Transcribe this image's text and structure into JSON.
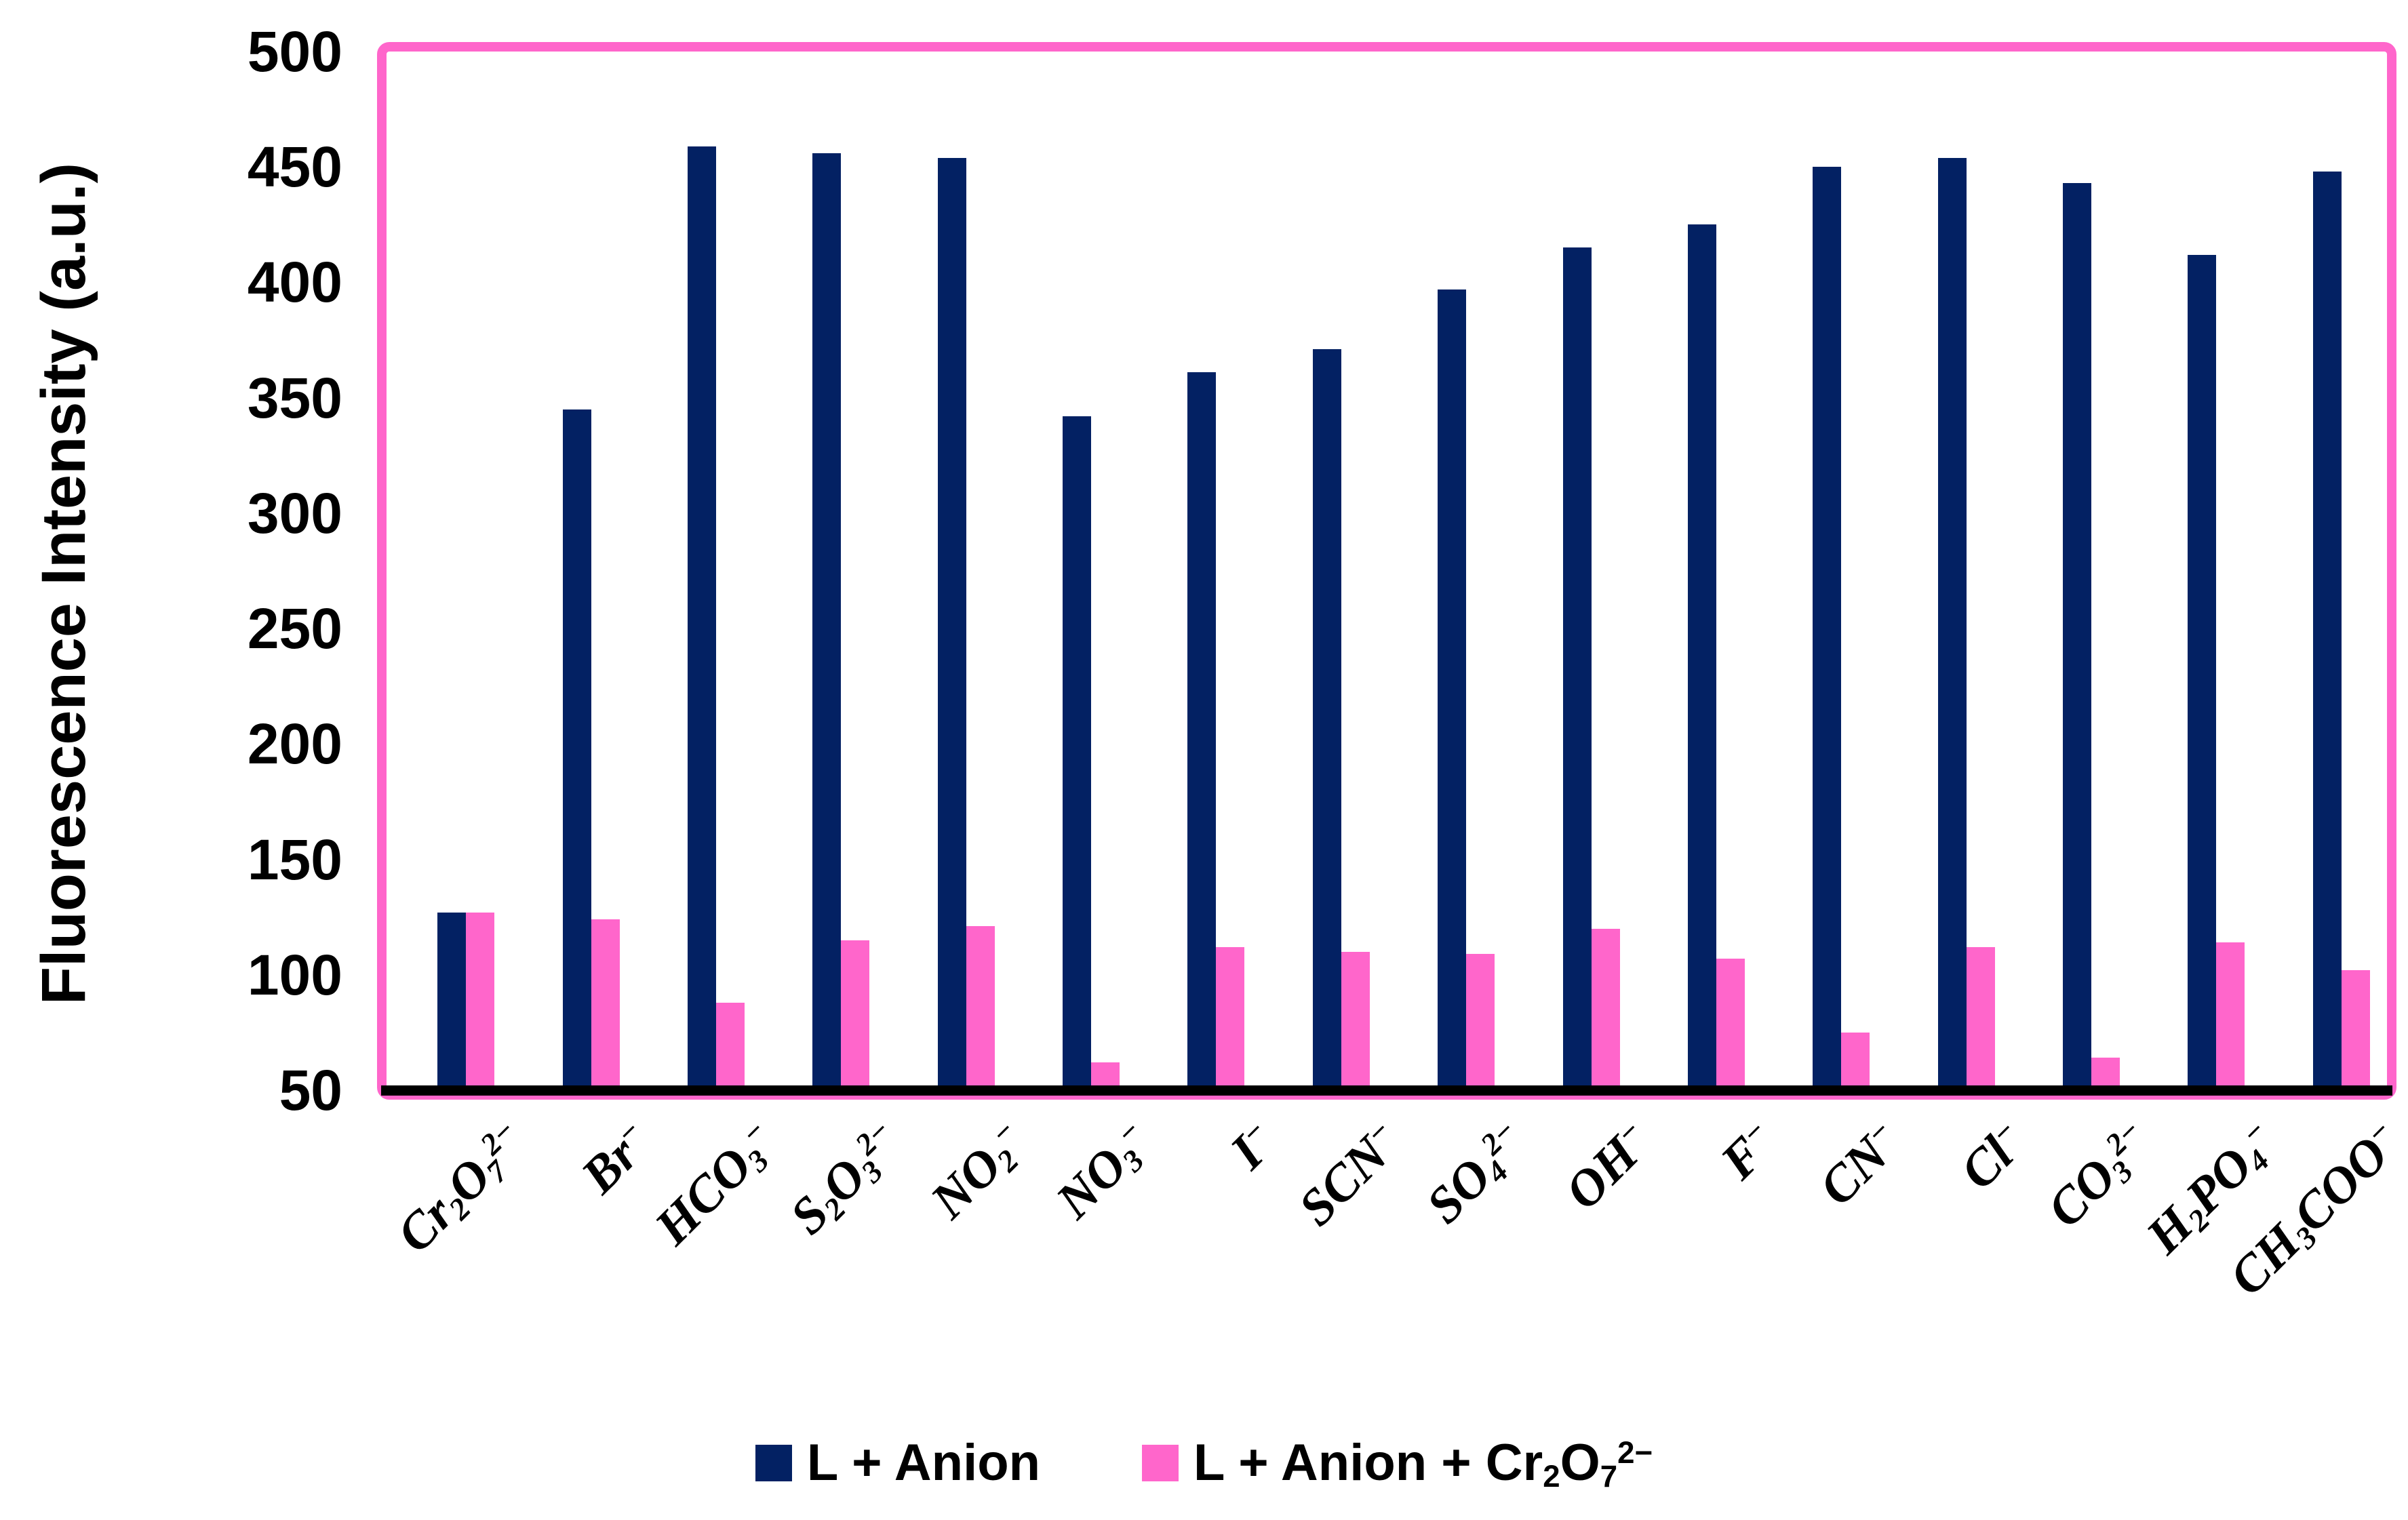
{
  "chart_data": {
    "type": "bar",
    "title": "",
    "xlabel": "",
    "ylabel": "Fluorescence Intensity (a.u.)",
    "ylim": [
      50,
      500
    ],
    "yticks": [
      500,
      450,
      400,
      350,
      300,
      250,
      200,
      150,
      100,
      50
    ],
    "grid": false,
    "legend_position": "bottom",
    "background_color": "#FFFFFF",
    "plot_border_color": "#FF66CB",
    "axis_line_color": "#000000",
    "categories": [
      "Cr2O7 2-",
      "Br-",
      "HCO3-",
      "S2O3 2-",
      "NO2-",
      "NO3-",
      "I-",
      "SCN-",
      "SO4 2-",
      "OH-",
      "F-",
      "CN-",
      "Cl-",
      "CO3 2-",
      "H2PO4-",
      "CH3COO-"
    ],
    "categories_html": [
      "Cr<sub>2</sub>O<sub>7</sub><sup>2−</sup>",
      "Br<sup>−</sup>",
      "HCO<sub>3</sub><sup>−</sup>",
      "S<sub>2</sub>O<sub>3</sub><sup>2−</sup>",
      "NO<sub>2</sub><sup>−</sup>",
      "NO<sub>3</sub><sup>−</sup>",
      "I<sup>−</sup>",
      "SCN<sup>−</sup>",
      "SO<sub>4</sub><sup>2−</sup>",
      "OH<sup>−</sup>",
      "F<sup>−</sup>",
      "CN<sup>−</sup>",
      "Cl<sup>−</sup>",
      "CO<sub>3</sub><sup>2−</sup>",
      "H<sub>2</sub>PO<sub>4</sub><sup>−</sup>",
      "CH<sub>3</sub>COO<sup>−</sup>"
    ],
    "series": [
      {
        "key": "l-anion",
        "name": "L + Anion",
        "name_html": "L + Anion",
        "color": "#032163",
        "values": [
          127,
          345,
          459,
          456,
          454,
          342,
          361,
          371,
          397,
          415,
          425,
          450,
          454,
          443,
          412,
          448
        ]
      },
      {
        "key": "l-anion-cr2o7",
        "name": "L + Anion + Cr2O7 2-",
        "name_html": "L + Anion + Cr<sub>2</sub>O<sub>7</sub><sup>2−</sup>",
        "color": "#FF66CB",
        "values": [
          127,
          124,
          88,
          115,
          121,
          62,
          112,
          110,
          109,
          120,
          107,
          75,
          112,
          64,
          114,
          102
        ]
      }
    ]
  }
}
